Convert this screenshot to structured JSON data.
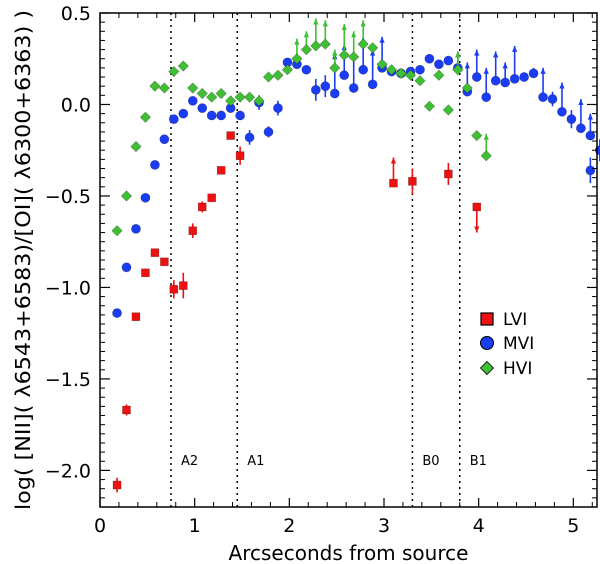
{
  "chart_data": {
    "type": "scatter",
    "xlabel": "Arcseconds from source",
    "ylabel": "log( [NII]( λ6543+6583)/[OI]( λ6300+6363) )",
    "xlim": [
      0,
      5.25
    ],
    "ylim": [
      -2.2,
      0.5
    ],
    "x_ticks": [
      0,
      1,
      2,
      3,
      4,
      5
    ],
    "x_tick_labels": [
      "0",
      "1",
      "2",
      "3",
      "4",
      "5"
    ],
    "y_ticks": [
      -2.0,
      -1.5,
      -1.0,
      -0.5,
      0.0,
      0.5
    ],
    "y_tick_labels": [
      "−2.0",
      "−1.5",
      "−1.0",
      "−0.5",
      "0.0",
      "0.5"
    ],
    "grid": false,
    "legend_position": "right",
    "vertical_lines": [
      {
        "x": 0.75,
        "label": "A2"
      },
      {
        "x": 1.45,
        "label": "A1"
      },
      {
        "x": 3.3,
        "label": "B0"
      },
      {
        "x": 3.8,
        "label": "B1"
      }
    ],
    "series": [
      {
        "name": "LVI",
        "marker": "square",
        "color": "#ee1111",
        "points": [
          {
            "x": 0.18,
            "y": -2.08,
            "err": 0.04
          },
          {
            "x": 0.28,
            "y": -1.67,
            "err": 0.03
          },
          {
            "x": 0.38,
            "y": -1.16
          },
          {
            "x": 0.48,
            "y": -0.92
          },
          {
            "x": 0.58,
            "y": -0.81
          },
          {
            "x": 0.68,
            "y": -0.86
          },
          {
            "x": 0.78,
            "y": -1.01,
            "err": 0.05
          },
          {
            "x": 0.88,
            "y": -0.99,
            "err": 0.07
          },
          {
            "x": 0.98,
            "y": -0.69,
            "err": 0.04
          },
          {
            "x": 1.08,
            "y": -0.56,
            "err": 0.03
          },
          {
            "x": 1.18,
            "y": -0.51,
            "err": 0.02
          },
          {
            "x": 1.28,
            "y": -0.36
          },
          {
            "x": 1.38,
            "y": -0.17
          },
          {
            "x": 1.48,
            "y": -0.28,
            "err": 0.05
          },
          {
            "x": 3.1,
            "y": -0.43,
            "limit": "lower",
            "limit_to": -0.29
          },
          {
            "x": 3.3,
            "y": -0.42,
            "err": 0.07
          },
          {
            "x": 3.68,
            "y": -0.38,
            "err": 0.06
          },
          {
            "x": 3.98,
            "y": -0.56,
            "limit": "upper",
            "limit_to": -0.7
          }
        ]
      },
      {
        "name": "MVI",
        "marker": "circle",
        "color": "#1a3cf5",
        "points": [
          {
            "x": 0.18,
            "y": -1.14
          },
          {
            "x": 0.28,
            "y": -0.89
          },
          {
            "x": 0.38,
            "y": -0.68
          },
          {
            "x": 0.48,
            "y": -0.51
          },
          {
            "x": 0.58,
            "y": -0.33
          },
          {
            "x": 0.68,
            "y": -0.19
          },
          {
            "x": 0.78,
            "y": -0.08
          },
          {
            "x": 0.88,
            "y": -0.05
          },
          {
            "x": 0.98,
            "y": 0.02
          },
          {
            "x": 1.08,
            "y": -0.02
          },
          {
            "x": 1.18,
            "y": -0.06
          },
          {
            "x": 1.28,
            "y": -0.06
          },
          {
            "x": 1.38,
            "y": -0.02
          },
          {
            "x": 1.48,
            "y": -0.06
          },
          {
            "x": 1.58,
            "y": -0.18,
            "err": 0.04
          },
          {
            "x": 1.68,
            "y": 0.01,
            "err": 0.04
          },
          {
            "x": 1.78,
            "y": -0.15,
            "err": 0.03
          },
          {
            "x": 1.88,
            "y": -0.02,
            "err": 0.04
          },
          {
            "x": 1.98,
            "y": 0.23
          },
          {
            "x": 2.08,
            "y": 0.22
          },
          {
            "x": 2.18,
            "y": 0.19
          },
          {
            "x": 2.28,
            "y": 0.08,
            "err": 0.06
          },
          {
            "x": 2.38,
            "y": 0.1,
            "err": 0.06
          },
          {
            "x": 2.48,
            "y": 0.06,
            "limit": "lower",
            "limit_to": 0.28
          },
          {
            "x": 2.58,
            "y": 0.16,
            "limit": "lower",
            "limit_to": 0.33
          },
          {
            "x": 2.68,
            "y": 0.09,
            "limit": "lower",
            "limit_to": 0.28
          },
          {
            "x": 2.78,
            "y": 0.19,
            "limit": "lower",
            "limit_to": 0.37
          },
          {
            "x": 2.88,
            "y": 0.11,
            "limit": "lower",
            "limit_to": 0.3
          },
          {
            "x": 2.98,
            "y": 0.2,
            "limit": "lower",
            "limit_to": 0.37
          },
          {
            "x": 3.08,
            "y": 0.18
          },
          {
            "x": 3.18,
            "y": 0.17
          },
          {
            "x": 3.28,
            "y": 0.18
          },
          {
            "x": 3.38,
            "y": 0.19
          },
          {
            "x": 3.48,
            "y": 0.25
          },
          {
            "x": 3.58,
            "y": 0.22
          },
          {
            "x": 3.68,
            "y": 0.24
          },
          {
            "x": 3.78,
            "y": 0.2,
            "limit": "lower",
            "limit_to": 0.29
          },
          {
            "x": 3.88,
            "y": 0.07,
            "limit": "lower",
            "limit_to": 0.23
          },
          {
            "x": 3.98,
            "y": 0.15,
            "limit": "lower",
            "limit_to": 0.3
          },
          {
            "x": 4.08,
            "y": 0.04,
            "limit": "lower",
            "limit_to": 0.2
          },
          {
            "x": 4.18,
            "y": 0.13,
            "limit": "lower",
            "limit_to": 0.29
          },
          {
            "x": 4.28,
            "y": 0.12,
            "limit": "lower",
            "limit_to": 0.23
          },
          {
            "x": 4.38,
            "y": 0.14,
            "limit": "lower",
            "limit_to": 0.32
          },
          {
            "x": 4.48,
            "y": 0.15
          },
          {
            "x": 4.58,
            "y": 0.17,
            "limit": "lower",
            "limit_to": 0.2
          },
          {
            "x": 4.68,
            "y": 0.04,
            "limit": "lower",
            "limit_to": 0.2
          },
          {
            "x": 4.78,
            "y": 0.03,
            "err": 0.04
          },
          {
            "x": 4.88,
            "y": -0.04,
            "limit": "lower",
            "limit_to": 0.12
          },
          {
            "x": 4.98,
            "y": -0.08,
            "err": 0.05
          },
          {
            "x": 5.08,
            "y": -0.13,
            "limit": "lower",
            "limit_to": 0.03
          },
          {
            "x": 5.18,
            "y": -0.17,
            "limit": "lower",
            "limit_to": -0.05
          },
          {
            "x": 5.28,
            "y": -0.25,
            "err": 0.06
          },
          {
            "x": 5.18,
            "y": -0.36,
            "err": 0.07
          }
        ]
      },
      {
        "name": "HVI",
        "marker": "diamond",
        "color": "#3fbf34",
        "points": [
          {
            "x": 0.18,
            "y": -0.69
          },
          {
            "x": 0.28,
            "y": -0.5
          },
          {
            "x": 0.38,
            "y": -0.23
          },
          {
            "x": 0.48,
            "y": -0.07
          },
          {
            "x": 0.58,
            "y": 0.1
          },
          {
            "x": 0.68,
            "y": 0.09
          },
          {
            "x": 0.78,
            "y": 0.18
          },
          {
            "x": 0.88,
            "y": 0.21
          },
          {
            "x": 0.98,
            "y": 0.09
          },
          {
            "x": 1.08,
            "y": 0.06
          },
          {
            "x": 1.18,
            "y": 0.04
          },
          {
            "x": 1.28,
            "y": 0.06
          },
          {
            "x": 1.38,
            "y": 0.02
          },
          {
            "x": 1.48,
            "y": 0.04
          },
          {
            "x": 1.58,
            "y": 0.04
          },
          {
            "x": 1.68,
            "y": 0.02
          },
          {
            "x": 1.78,
            "y": 0.15
          },
          {
            "x": 1.88,
            "y": 0.16
          },
          {
            "x": 1.98,
            "y": 0.19
          },
          {
            "x": 2.08,
            "y": 0.25,
            "limit": "lower",
            "limit_to": 0.36
          },
          {
            "x": 2.18,
            "y": 0.3,
            "limit": "lower",
            "limit_to": 0.4
          },
          {
            "x": 2.28,
            "y": 0.32,
            "limit": "lower",
            "limit_to": 0.47
          },
          {
            "x": 2.38,
            "y": 0.33,
            "limit": "lower",
            "limit_to": 0.46
          },
          {
            "x": 2.48,
            "y": 0.2,
            "limit": "lower",
            "limit_to": 0.3
          },
          {
            "x": 2.58,
            "y": 0.27,
            "limit": "lower",
            "limit_to": 0.44
          },
          {
            "x": 2.68,
            "y": 0.26,
            "limit": "lower",
            "limit_to": 0.4
          },
          {
            "x": 2.78,
            "y": 0.33,
            "limit": "lower",
            "limit_to": 0.46
          },
          {
            "x": 2.88,
            "y": 0.31
          },
          {
            "x": 2.98,
            "y": 0.22
          },
          {
            "x": 3.08,
            "y": 0.19
          },
          {
            "x": 3.18,
            "y": 0.17
          },
          {
            "x": 3.28,
            "y": 0.16
          },
          {
            "x": 3.38,
            "y": 0.13
          },
          {
            "x": 3.48,
            "y": -0.01
          },
          {
            "x": 3.58,
            "y": 0.16
          },
          {
            "x": 3.68,
            "y": -0.03
          },
          {
            "x": 3.78,
            "y": 0.19,
            "limit": "lower",
            "limit_to": 0.29
          },
          {
            "x": 3.88,
            "y": 0.09
          },
          {
            "x": 3.98,
            "y": -0.17
          },
          {
            "x": 4.08,
            "y": -0.28,
            "limit": "lower",
            "limit_to": -0.16
          }
        ]
      }
    ]
  }
}
